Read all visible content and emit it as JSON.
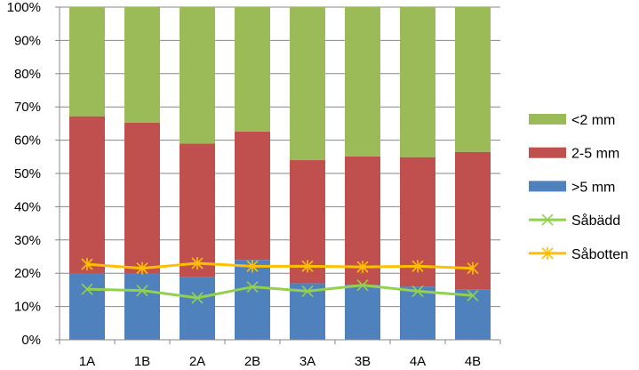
{
  "chart_data": {
    "type": "bar",
    "stacked": true,
    "percent": true,
    "categories": [
      "1A",
      "1B",
      "2A",
      "2B",
      "3A",
      "3B",
      "4A",
      "4B"
    ],
    "ylim": [
      0,
      100
    ],
    "yticks": [
      "0%",
      "10%",
      "20%",
      "30%",
      "40%",
      "50%",
      "60%",
      "70%",
      "80%",
      "90%",
      "100%"
    ],
    "grid": true,
    "legend_position": "right",
    "series": [
      {
        "name": ">5 mm",
        "kind": "bar",
        "color": "#4F81BD",
        "values": [
          20,
          20,
          18.8,
          24,
          17,
          16.5,
          16,
          15.2
        ]
      },
      {
        "name": "2-5 mm",
        "kind": "bar",
        "color": "#C0504D",
        "values": [
          47.2,
          45.3,
          40.2,
          38.6,
          37,
          38.6,
          38.9,
          41.3
        ]
      },
      {
        "name": "<2 mm",
        "kind": "bar",
        "color": "#9BBB59",
        "values": [
          32.8,
          34.7,
          41,
          37.4,
          46,
          44.9,
          45.1,
          43.5
        ]
      },
      {
        "name": "Såbädd",
        "kind": "line",
        "color": "#92D050",
        "marker": "x",
        "values": [
          15.2,
          14.8,
          12.6,
          15.9,
          14.6,
          16.4,
          14.6,
          13.3
        ]
      },
      {
        "name": "Såbotten",
        "kind": "line",
        "color": "#FFC000",
        "marker": "star",
        "values": [
          22.7,
          21.5,
          23,
          22.1,
          22.1,
          21.9,
          22.1,
          21.5
        ]
      }
    ],
    "legend_order": [
      "<2 mm",
      "2-5 mm",
      ">5 mm",
      "Såbädd",
      "Såbotten"
    ]
  }
}
